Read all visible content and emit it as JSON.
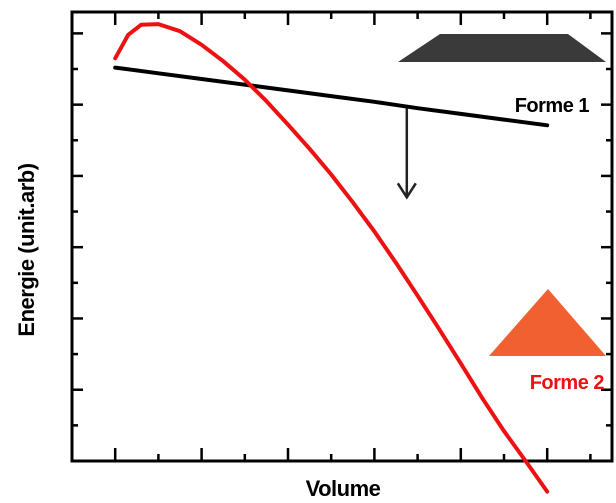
{
  "chart_data": {
    "type": "line",
    "title": "",
    "xlabel": "Volume",
    "ylabel": "Energie (unit.arb)",
    "xlim": [
      0,
      12.5
    ],
    "ylim": [
      0,
      6.3
    ],
    "grid": false,
    "legend": "none",
    "series": [
      {
        "name": "Forme 1",
        "color": "#000000",
        "icon": "trapezoid-icon",
        "icon_color": "#3a3a3a",
        "x": [
          1,
          2,
          3,
          4,
          5,
          6,
          7,
          8,
          9,
          10,
          11
        ],
        "y": [
          5.52,
          5.44,
          5.36,
          5.28,
          5.2,
          5.12,
          5.04,
          4.95,
          4.87,
          4.79,
          4.71
        ]
      },
      {
        "name": "Forme 2",
        "color": "#ee1111",
        "icon": "triangle-icon",
        "icon_color": "#f06030",
        "x": [
          1,
          1.3,
          1.6,
          2,
          2.5,
          3,
          3.5,
          4,
          4.5,
          5,
          5.5,
          6,
          6.5,
          7,
          7.5,
          8,
          8.5,
          9,
          9.5,
          10,
          10.5,
          11
        ],
        "y": [
          5.65,
          5.98,
          6.12,
          6.13,
          6.03,
          5.84,
          5.61,
          5.35,
          5.05,
          4.72,
          4.38,
          4.02,
          3.63,
          3.22,
          2.78,
          2.32,
          1.85,
          1.37,
          0.88,
          0.42,
          0.0,
          -0.43
        ]
      }
    ],
    "annotations": [
      {
        "type": "arrow",
        "direction": "down",
        "icon": "arrow-down-icon",
        "from": [
          7.75,
          4.95
        ],
        "to": [
          7.75,
          3.7
        ]
      }
    ]
  }
}
